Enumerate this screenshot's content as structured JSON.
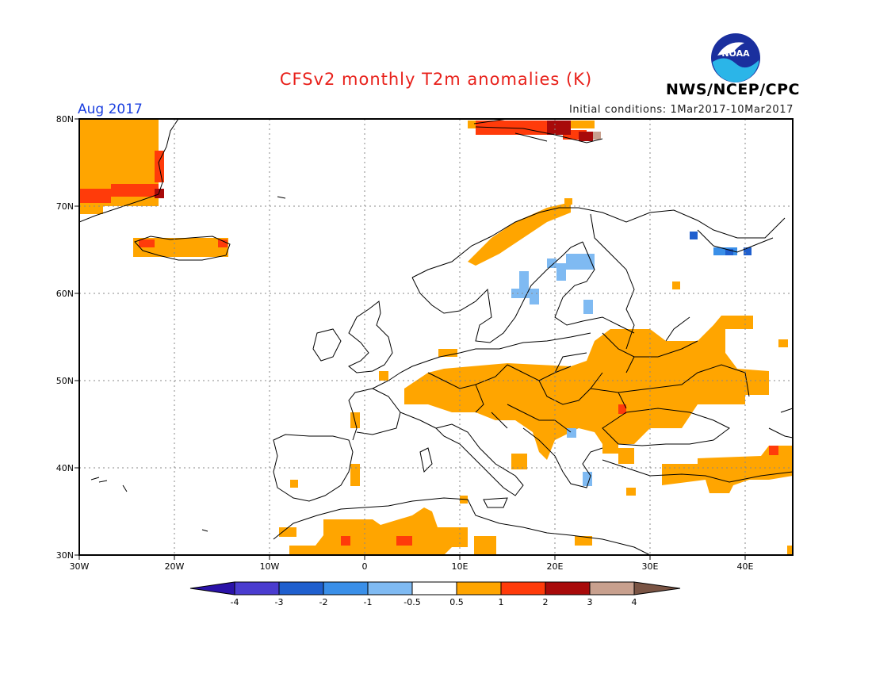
{
  "header": {
    "title": "CFSv2 monthly T2m anomalies (K)",
    "valid_month": "Aug 2017",
    "initial_conditions": "Initial conditions: 1Mar2017-10Mar2017",
    "agency": "NWS/NCEP/CPC",
    "logo_text": "NOAA"
  },
  "map": {
    "region": "Europe",
    "lon_range": [
      -30,
      45
    ],
    "lat_range": [
      30,
      80
    ],
    "lat_labels": [
      "80N",
      "70N",
      "60N",
      "50N",
      "40N",
      "30N"
    ],
    "lon_labels": [
      "30W",
      "20W",
      "10W",
      "0",
      "10E",
      "20E",
      "30E",
      "40E"
    ],
    "grid": true
  },
  "colorbar": {
    "labels": [
      "-4",
      "-3",
      "-2",
      "-1",
      "-0.5",
      "0.5",
      "1",
      "2",
      "3",
      "4"
    ],
    "colors": [
      "#2a12a8",
      "#4a3ccf",
      "#1f5fce",
      "#3a8fe8",
      "#7fbaf2",
      "#ffffff",
      "#ffa500",
      "#ff3b0a",
      "#a80a0a",
      "#c8a08e",
      "#7a5444"
    ]
  },
  "anomaly_regions": [
    {
      "name": "greenland",
      "color": "#ffa500"
    },
    {
      "name": "iceland",
      "color": "#ffa500"
    },
    {
      "name": "svalbard",
      "color": "#ff3b0a"
    },
    {
      "name": "scandinavia-coast",
      "color": "#ffa500"
    },
    {
      "name": "central-eastern-europe",
      "color": "#ffa500"
    },
    {
      "name": "north-africa",
      "color": "#ffa500"
    },
    {
      "name": "turkey-middle-east",
      "color": "#ffa500"
    },
    {
      "name": "sweden-finland",
      "color": "#7fbaf2"
    },
    {
      "name": "russia-north",
      "color": "#1f5fce"
    }
  ]
}
